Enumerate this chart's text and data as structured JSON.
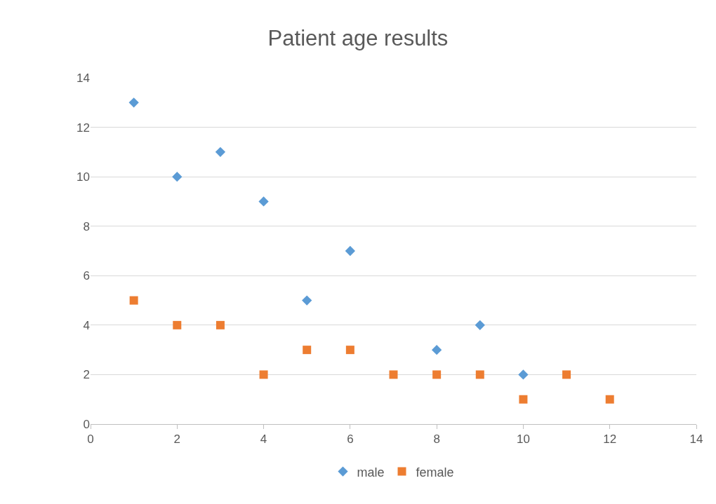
{
  "chart_data": {
    "type": "scatter",
    "title": "Patient age results",
    "series": [
      {
        "name": "male",
        "color": "#5b9bd5",
        "marker": "diamond",
        "x": [
          1,
          2,
          3,
          4,
          5,
          6,
          8,
          9,
          10
        ],
        "values": [
          13,
          10,
          11,
          9,
          5,
          7,
          3,
          4,
          2
        ]
      },
      {
        "name": "female",
        "color": "#ed7d31",
        "marker": "square",
        "x": [
          1,
          2,
          3,
          4,
          5,
          6,
          7,
          8,
          9,
          10,
          11,
          12
        ],
        "values": [
          5,
          4,
          4,
          2,
          3,
          3,
          2,
          2,
          2,
          1,
          2,
          1
        ]
      }
    ],
    "xlim": [
      0,
      14
    ],
    "xticks": [
      0,
      2,
      4,
      6,
      8,
      10,
      12,
      14
    ],
    "ylim": [
      0,
      14
    ],
    "yticks": [
      0,
      2,
      4,
      6,
      8,
      10,
      12,
      14
    ],
    "grid": "y",
    "legend": "bottom"
  }
}
